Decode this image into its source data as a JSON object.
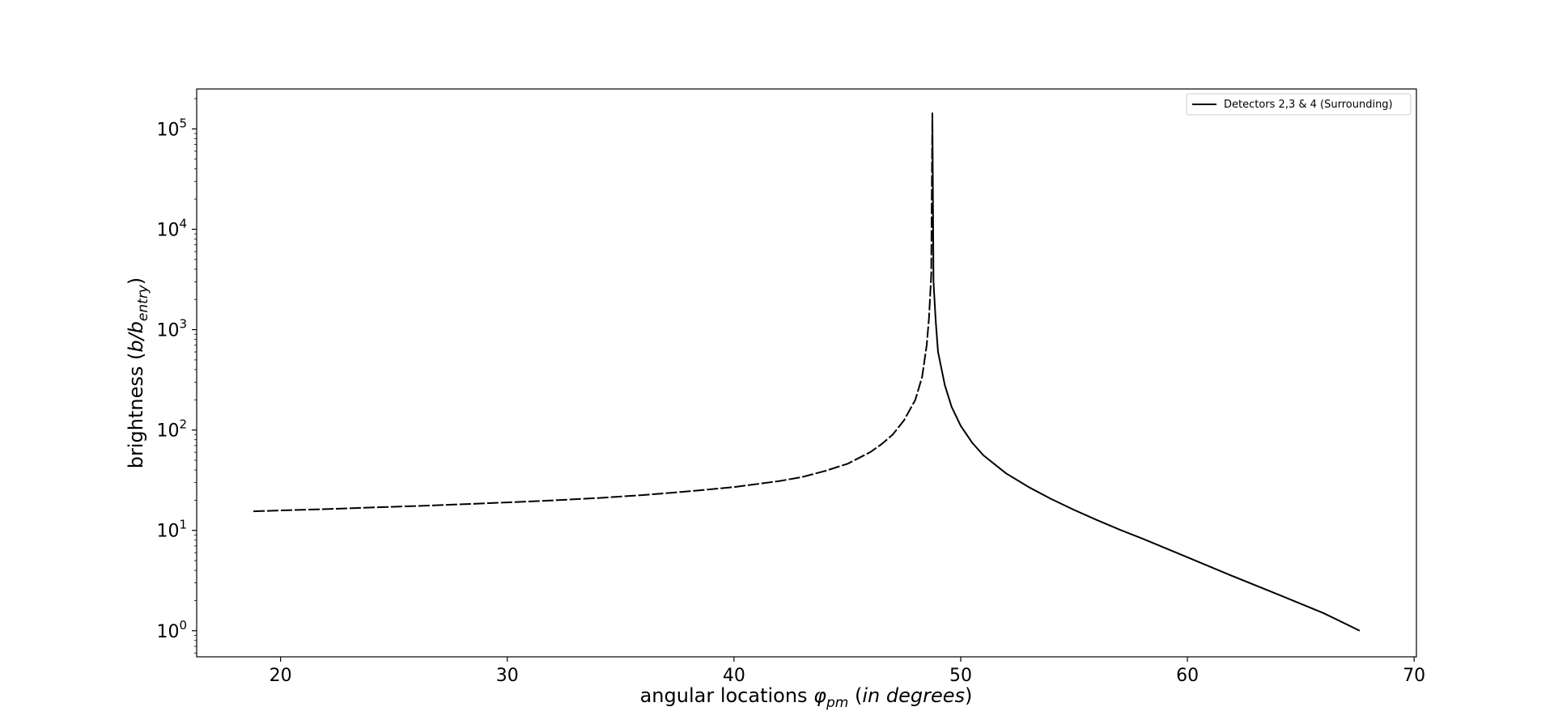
{
  "chart_data": {
    "type": "line",
    "title": "",
    "xlabel": {
      "prefix": "angular locations ",
      "symbol": "φ",
      "subscript": "pm",
      "open": " (",
      "italic": "in degrees",
      "close": ")"
    },
    "ylabel": {
      "prefix": "brightness (",
      "italic_b": "b",
      "slash": "/",
      "italic_b2": "b",
      "subscript": "entry",
      "close": ")"
    },
    "xlim": [
      16.3,
      70.1
    ],
    "ylim_log10": [
      -0.28,
      0.0
    ],
    "ylim": [
      0.55,
      250000
    ],
    "yscale": "log",
    "x_ticks": [
      20,
      30,
      40,
      50,
      60,
      70
    ],
    "x_tick_labels": [
      "20",
      "30",
      "40",
      "50",
      "60",
      "70"
    ],
    "y_ticks": [
      1,
      10,
      100,
      1000,
      10000,
      100000
    ],
    "y_tick_base": "10",
    "y_tick_exponents": [
      "0",
      "1",
      "2",
      "3",
      "4",
      "5"
    ],
    "grid": false,
    "legend_position": "top-right",
    "series": [
      {
        "name": "Detectors 2,3 & 4 (Surrounding)",
        "color": "#000000",
        "style": "dashed-then-solid",
        "peak": {
          "x": 48.75,
          "y": 145000
        },
        "points": [
          [
            18.8,
            15.5
          ],
          [
            20,
            15.8
          ],
          [
            22,
            16.3
          ],
          [
            24,
            16.9
          ],
          [
            26,
            17.5
          ],
          [
            28,
            18.2
          ],
          [
            30,
            19.0
          ],
          [
            32,
            19.9
          ],
          [
            34,
            21.0
          ],
          [
            36,
            22.5
          ],
          [
            38,
            24.5
          ],
          [
            40,
            27.0
          ],
          [
            42,
            31.0
          ],
          [
            43,
            34.0
          ],
          [
            44,
            39.0
          ],
          [
            45,
            46.0
          ],
          [
            46,
            60.0
          ],
          [
            46.5,
            72.0
          ],
          [
            47,
            90.0
          ],
          [
            47.5,
            125.0
          ],
          [
            48,
            200.0
          ],
          [
            48.3,
            340.0
          ],
          [
            48.5,
            700.0
          ],
          [
            48.6,
            1300.0
          ],
          [
            48.7,
            3500.0
          ],
          [
            48.75,
            145000
          ],
          [
            48.8,
            3000.0
          ],
          [
            48.9,
            1200.0
          ],
          [
            49,
            600.0
          ],
          [
            49.3,
            280.0
          ],
          [
            49.6,
            170.0
          ],
          [
            50,
            110.0
          ],
          [
            50.5,
            75.0
          ],
          [
            51,
            56.0
          ],
          [
            52,
            37.0
          ],
          [
            53,
            27.0
          ],
          [
            54,
            20.5
          ],
          [
            55,
            16.0
          ],
          [
            56,
            12.7
          ],
          [
            57,
            10.2
          ],
          [
            58,
            8.3
          ],
          [
            59,
            6.7
          ],
          [
            60,
            5.4
          ],
          [
            62,
            3.5
          ],
          [
            64,
            2.3
          ],
          [
            66,
            1.5
          ],
          [
            67.6,
            1.0
          ]
        ]
      }
    ]
  }
}
